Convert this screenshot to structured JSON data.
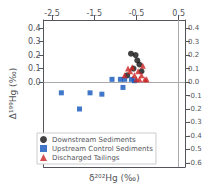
{
  "chart_data": {
    "type": "scatter",
    "xlabel": "δ²⁰²Hg (‰)",
    "ylabel": "Δ¹⁹⁹Hg (‰)",
    "series": [
      {
        "name": "Downstream Sediments",
        "color": "#111111",
        "marker": "circle",
        "x": [
          -0.72,
          -0.63,
          -0.57,
          -0.52,
          -0.48,
          -0.43,
          -0.38
        ],
        "values": [
          0.05,
          0.21,
          0.1,
          0.2,
          0.16,
          0.13,
          0.08
        ]
      },
      {
        "name": "Upstream Control Sediments",
        "color": "#1155bb",
        "marker": "square",
        "x": [
          -2.28,
          -1.85,
          -1.6,
          -1.32,
          -1.08,
          -0.88,
          -0.82,
          -0.78,
          -0.62,
          -0.55
        ],
        "values": [
          -0.08,
          -0.2,
          -0.08,
          -0.09,
          0.02,
          0.02,
          -0.04,
          0.02,
          0.02,
          0.01
        ]
      },
      {
        "name": "Discharged Tailings",
        "color": "#cc2222",
        "marker": "triangle",
        "x": [
          -0.78,
          -0.7,
          -0.65,
          -0.6,
          -0.55,
          -0.5,
          -0.46,
          -0.43,
          -0.38,
          -0.35,
          -0.3,
          -0.26
        ],
        "values": [
          0.05,
          0.1,
          0.08,
          0.11,
          0.05,
          0.02,
          0.08,
          0.02,
          0.05,
          0.12,
          0.02,
          0.02
        ]
      }
    ],
    "xlim": [
      -2.7,
      0.65
    ],
    "xticks": [
      -2.5,
      -1.5,
      -0.5,
      0.5
    ],
    "ylim": [
      -0.63,
      0.46
    ],
    "yticks": [
      {
        "value": 0.0,
        "label": "0.0"
      },
      0.1,
      0.2,
      0.3,
      0.4
    ],
    "y2lim": [
      -0.63,
      0.46
    ],
    "y2ticks": [
      -0.6,
      -0.5,
      -0.4,
      -0.3,
      -0.2,
      -0.1,
      {
        "value": 0.0,
        "label": "0.0"
      },
      0.1,
      0.2,
      0.3,
      0.4
    ],
    "reference_lines": [
      {
        "axis": "y",
        "value": 0,
        "color": "#aaaaaa"
      },
      {
        "axis": "x",
        "value": 0.5,
        "color": "#aaaaaa"
      }
    ],
    "grid": false,
    "legend": "lower left"
  }
}
